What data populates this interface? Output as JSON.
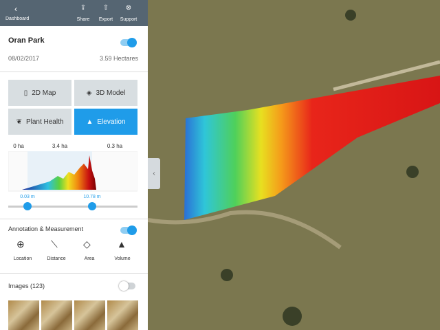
{
  "toolbar": {
    "back": "Dashboard",
    "actions": [
      "Share",
      "Export",
      "Support"
    ]
  },
  "project": {
    "name": "Oran Park",
    "date": "08/02/2017",
    "area": "3.59 Hectares"
  },
  "views": [
    "2D Map",
    "3D Model",
    "Plant Health",
    "Elevation"
  ],
  "histogram": {
    "area_labels": [
      "0 ha",
      "3.4 ha",
      "0.3 ha"
    ],
    "range_labels": [
      "0.03 m",
      "10.78 m"
    ]
  },
  "annotation": {
    "title": "Annotation & Measurement",
    "tools": [
      "Location",
      "Distance",
      "Area",
      "Volume"
    ]
  },
  "images": {
    "title": "Images (123)"
  }
}
